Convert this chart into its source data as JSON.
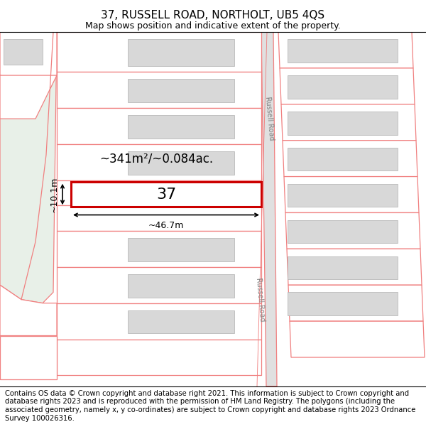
{
  "title_line1": "37, RUSSELL ROAD, NORTHOLT, UB5 4QS",
  "title_line2": "Map shows position and indicative extent of the property.",
  "footer_text": "Contains OS data © Crown copyright and database right 2021. This information is subject to Crown copyright and database rights 2023 and is reproduced with the permission of HM Land Registry. The polygons (including the associated geometry, namely x, y co-ordinates) are subject to Crown copyright and database rights 2023 Ordnance Survey 100026316.",
  "bg_color": "#ffffff",
  "map_bg": "#ffffff",
  "green_area_color": "#e8f0e8",
  "parcel_line_color": "#f08080",
  "highlight_color": "#cc0000",
  "road_label1": "Russell Road",
  "road_label2": "Russell Road",
  "property_label": "37",
  "area_label": "~341m²/~0.084ac.",
  "width_label": "~46.7m",
  "height_label": "~10.1m",
  "title_fontsize": 11,
  "subtitle_fontsize": 9,
  "footer_fontsize": 7.2
}
